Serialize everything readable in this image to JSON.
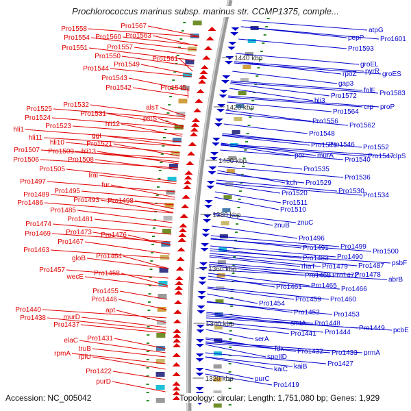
{
  "title": "Prochlorococcus marinus subsp. marinus str. CCMP1375, comple...",
  "footer": {
    "accession": "Accession: NC_005042",
    "summary": "Topology: circular; Length: 1,751,080 bp; Genes: 1,929"
  },
  "colors": {
    "forward_strand": "#e00000",
    "reverse_strand": "#0000cc",
    "backbone": "#9a9a9a",
    "gc_ticks": "#2a8a2a",
    "tick_text": "#333333"
  },
  "map": {
    "type": "circular genome map (zoomed arc)",
    "position_labels": [
      "1440 kbp",
      "1420 kbp",
      "1400 kbp",
      "1380 kbp",
      "1360 kbp",
      "1340 kbp",
      "1320 kbp"
    ],
    "left_labels": [
      "Pro1558",
      "Pro1567",
      "Pro1554",
      "Pro1560",
      "Pro1563",
      "Pro1551",
      "Pro1557",
      "Pro1550",
      "Pro1561",
      "Pro1544",
      "Pro1549",
      "Pro1543",
      "Pro1542",
      "Pro1545",
      "Pro1532",
      "alsT",
      "Pro1525",
      "Pro1531",
      "pstS",
      "Pro1524",
      "hli12",
      "Pro1523",
      "ggt",
      "hli1",
      "hli11",
      "hli10",
      "Pro1521",
      "Pro1507",
      "Pro1509",
      "hli13",
      "Pro1506",
      "Pro1508",
      "Pro1505",
      "lrаl",
      "Pro1497",
      "fur",
      "Pro1495",
      "Pro1489",
      "Pro1493",
      "Pro1498",
      "Pro1486",
      "Pro1485",
      "Pro1481",
      "Pro1474",
      "Pro1473",
      "Pro1469",
      "Pro1476",
      "Pro1467",
      "Pro1463",
      "gloB",
      "Pro1464",
      "Pro1457",
      "wecE",
      "Pro1458",
      "Pro1455",
      "Pro1446",
      "apt",
      "Pro1440",
      "murD",
      "Pro1438",
      "Pro1437",
      "Pro1431",
      "elaC",
      "truB",
      "rpmA",
      "rplU",
      "Pro1422",
      "purD"
    ],
    "right_labels": [
      "atpG",
      "pepP",
      "Pro1601",
      "Pro1593",
      "groEL",
      "rpoZ",
      "pyrR",
      "groES",
      "gap3",
      "folE",
      "Pro1583",
      "Pro1572",
      "crp",
      "proP",
      "hli3",
      "Pro1564",
      "Pro1556",
      "Pro1562",
      "Pro1548",
      "Pro1546",
      "Pro1552",
      "Pro1541",
      "por",
      "murA",
      "Pro1540",
      "Pro1547",
      "clpS",
      "Pro1535",
      "Pro1536",
      "kch",
      "Pro1529",
      "Pro1530",
      "Pro1534",
      "Pro1520",
      "Pro1511",
      "Pro1510",
      "znuC",
      "znuB",
      "Pro1496",
      "Pro1491",
      "Pro1499",
      "Pro1500",
      "Pro1483",
      "Pro1490",
      "psbF",
      "rhaT",
      "Pro1479",
      "Pro1487",
      "Pro1468",
      "Pro1472",
      "Pro1478",
      "abrB",
      "Pro1461",
      "Pro1465",
      "Pro1466",
      "Pro1459",
      "Pro1460",
      "Pro1454",
      "Pro1452",
      "Pro1453",
      "smtA",
      "Pro1448",
      "Pro1449",
      "Pro1441",
      "Pro1444",
      "pcbE",
      "serA",
      "fdx",
      "Pro1432",
      "Pro1433",
      "prmA",
      "spoIID",
      "kaiB",
      "Pro1427",
      "kaiC",
      "purC",
      "Pro1419"
    ]
  }
}
